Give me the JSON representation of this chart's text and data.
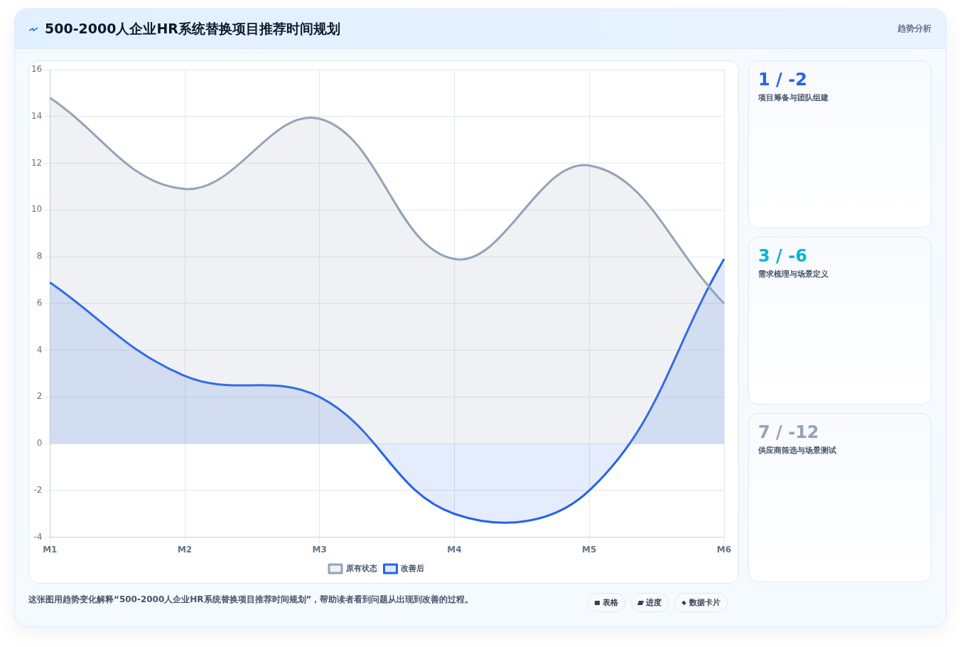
{
  "chart_data": {
    "type": "area",
    "title": "500-2000人企业HR系统替换项目推荐时间规划",
    "subtitle": "趋势分析",
    "categories": [
      "M1",
      "M2",
      "M3",
      "M4",
      "M5",
      "M6"
    ],
    "series": [
      {
        "name": "原有状态",
        "color": "#94a3b8",
        "values": [
          14.8,
          10.9,
          13.9,
          7.9,
          11.9,
          6
        ]
      },
      {
        "name": "改善后",
        "color": "#2563eb",
        "values": [
          6.9,
          2.9,
          2,
          -3,
          -2,
          7.9
        ]
      }
    ],
    "ylim": [
      -4,
      16
    ],
    "yticks": [
      -4,
      -2,
      0,
      2,
      4,
      6,
      8,
      10,
      12,
      14,
      16
    ],
    "grid": true,
    "legend": "bottom",
    "marker": "none",
    "annotations": [
      "1 / -2",
      "项目筹备与团队组建",
      "3 / -6",
      "需求梳理与场景定义",
      "7 / -12",
      "供应商筛选与场景测试",
      "这张图用趋势变化解释“500-2000人企业HR系统替换项目推荐时间规划”，帮助读者看到问题从出现到改善的过程。",
      "表格",
      "进度",
      "数据卡片"
    ]
  }
}
